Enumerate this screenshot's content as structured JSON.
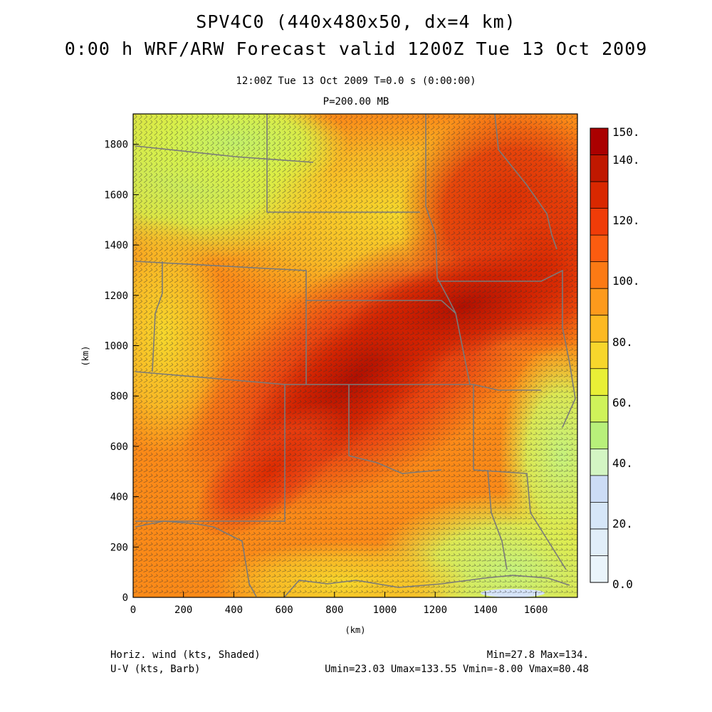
{
  "header": {
    "title_line1": "SPV4C0 (440x480x50, dx=4 km)",
    "title_line2": "0:00 h WRF/ARW Forecast valid 1200Z Tue 13 Oct 2009",
    "valid_time": "12:00Z Tue 13 Oct 2009    T=0.0 s (0:00:00)",
    "level": "P=200.00 MB"
  },
  "axes": {
    "x_label": "(km)",
    "y_label": "(km)",
    "x_ticks": [
      "0",
      "200",
      "400",
      "600",
      "800",
      "1000",
      "1200",
      "1400",
      "1600"
    ],
    "y_ticks": [
      "0",
      "200",
      "400",
      "600",
      "800",
      "1000",
      "1200",
      "1400",
      "1600",
      "1800"
    ]
  },
  "colorbar": {
    "labels": [
      "150.",
      "140.",
      "120.",
      "100.",
      "80.",
      "60.",
      "40.",
      "20.",
      "0.0"
    ],
    "colors": [
      "#aa0000",
      "#c01800",
      "#d92800",
      "#f03c08",
      "#fb5c10",
      "#fc7a14",
      "#fd9a1c",
      "#fdb922",
      "#f7d62c",
      "#e9ef36",
      "#cff25a",
      "#b8f07a",
      "#d3f5c3",
      "#ccdcf6",
      "#d6e6f8",
      "#e1eef9",
      "#eaf4fb"
    ]
  },
  "footer": {
    "left_line1": "Horiz. wind (kts, Shaded)",
    "left_line2": "U-V (kts, Barb)",
    "right_line1": "Min=27.8 Max=134.",
    "right_line2": "Umin=23.03 Umax=133.55 Vmin=-8.00 Vmax=80.48"
  }
}
